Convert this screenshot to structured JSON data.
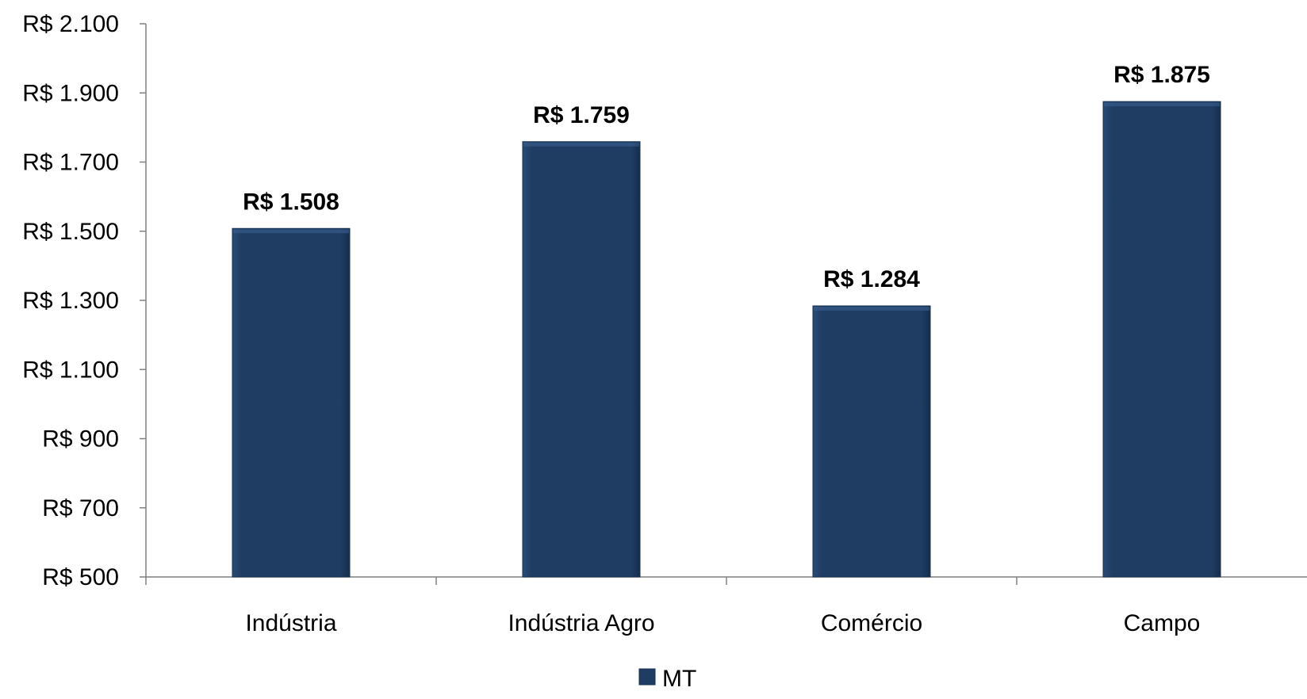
{
  "chart_data": {
    "type": "bar",
    "categories": [
      "Indústria",
      "Indústria Agro",
      "Comércio",
      "Campo"
    ],
    "series": [
      {
        "name": "MT",
        "values": [
          1508,
          1759,
          1284,
          1875
        ],
        "color": "#1f3d63"
      }
    ],
    "data_labels": [
      "R$ 1.508",
      "R$ 1.759",
      "R$ 1.284",
      "R$ 1.875"
    ],
    "y_ticks": [
      {
        "value": 500,
        "label": "R$ 500"
      },
      {
        "value": 700,
        "label": "R$ 700"
      },
      {
        "value": 900,
        "label": "R$ 900"
      },
      {
        "value": 1100,
        "label": "R$ 1.100"
      },
      {
        "value": 1300,
        "label": "R$ 1.300"
      },
      {
        "value": 1500,
        "label": "R$ 1.500"
      },
      {
        "value": 1700,
        "label": "R$ 1.700"
      },
      {
        "value": 1900,
        "label": "R$ 1.900"
      },
      {
        "value": 2100,
        "label": "R$ 2.100"
      }
    ],
    "ylim": [
      500,
      2100
    ],
    "grid": false,
    "legend_position": "bottom-center",
    "title": "",
    "xlabel": "",
    "ylabel": ""
  }
}
